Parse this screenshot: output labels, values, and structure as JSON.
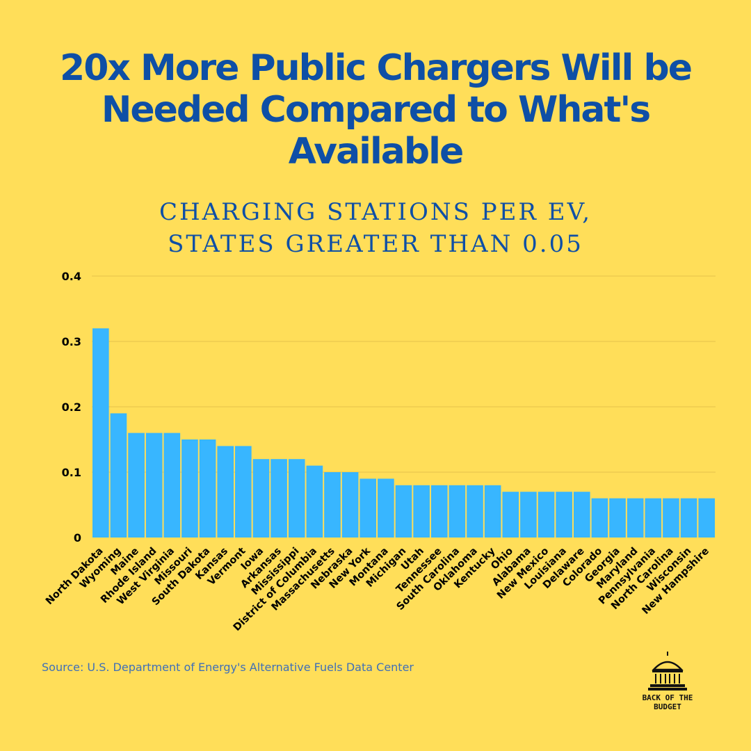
{
  "header": {
    "title": "20x More Public Chargers Will be Needed Compared to What's Available",
    "subtitle_line1": "CHARGING STATIONS PER EV,",
    "subtitle_line2": "STATES GREATER THAN 0.05"
  },
  "footer": {
    "source": "Source: U.S. Department of Energy's Alternative Fuels Data Center",
    "logo_line1": "BACK OF THE",
    "logo_line2": "BUDGET",
    "logo_icon": "capitol-dome-icon"
  },
  "colors": {
    "background": "#ffde59",
    "title": "#0e4fa6",
    "bar": "#38b6ff",
    "gridline": "#e6c24a",
    "source_text": "#3f6fb8"
  },
  "chart_data": {
    "type": "bar",
    "title": "CHARGING STATIONS PER EV, STATES GREATER THAN 0.05",
    "xlabel": "",
    "ylabel": "",
    "ylim": [
      0,
      0.4
    ],
    "yticks": [
      "0",
      "0.1",
      "0.2",
      "0.3",
      "0.4"
    ],
    "ytick_values": [
      0,
      0.1,
      0.2,
      0.3,
      0.4
    ],
    "grid": true,
    "categories": [
      "North Dakota",
      "Wyoming",
      "Maine",
      "Rhode Island",
      "West Virginia",
      "Missouri",
      "South Dakota",
      "Kansas",
      "Vermont",
      "Iowa",
      "Arkansas",
      "Mississippi",
      "District of Columbia",
      "Massachusetts",
      "Nebraska",
      "New York",
      "Montana",
      "Michigan",
      "Utah",
      "Tennessee",
      "South Carolina",
      "Oklahoma",
      "Kentucky",
      "Ohio",
      "Alabama",
      "New Mexico",
      "Louisiana",
      "Delaware",
      "Colorado",
      "Georgia",
      "Maryland",
      "Pennsylvania",
      "North Carolina",
      "Wisconsin",
      "New Hampshire"
    ],
    "values": [
      0.32,
      0.19,
      0.16,
      0.16,
      0.16,
      0.15,
      0.15,
      0.14,
      0.14,
      0.12,
      0.12,
      0.12,
      0.11,
      0.1,
      0.1,
      0.09,
      0.09,
      0.08,
      0.08,
      0.08,
      0.08,
      0.08,
      0.08,
      0.07,
      0.07,
      0.07,
      0.07,
      0.07,
      0.06,
      0.06,
      0.06,
      0.06,
      0.06,
      0.06,
      0.06
    ]
  }
}
